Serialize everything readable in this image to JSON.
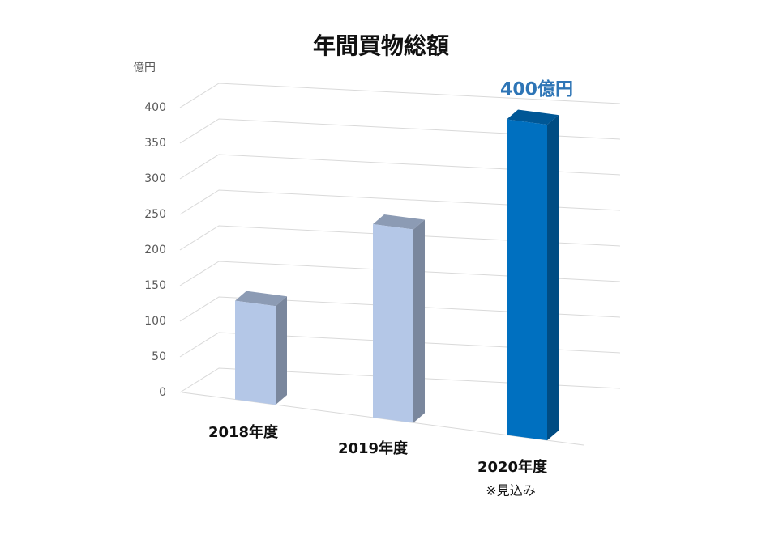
{
  "chart_data": {
    "type": "bar3d",
    "title": "年間買物総額",
    "y_label": "億円",
    "categories": [
      "2018年度",
      "2019年度",
      "2020年度"
    ],
    "values": [
      125,
      245,
      400
    ],
    "value_labels": [
      null,
      null,
      "400億円"
    ],
    "colors": [
      "#b4c7e7",
      "#b4c7e7",
      "#0070c0"
    ],
    "annotation": "※見込み",
    "ylim": [
      0,
      400
    ],
    "yticks": [
      0,
      50,
      100,
      150,
      200,
      250,
      300,
      350,
      400
    ],
    "grid": true
  }
}
